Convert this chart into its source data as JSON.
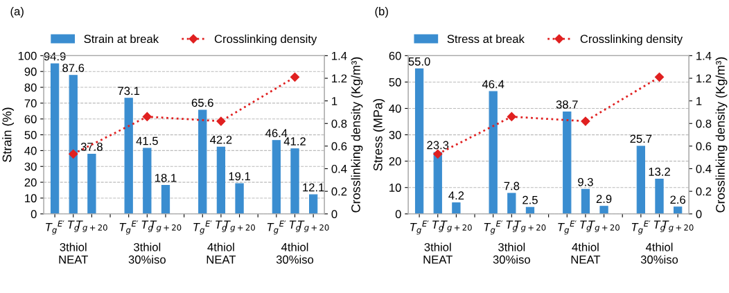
{
  "chart_data": [
    {
      "type": "bar",
      "title": "(a)",
      "ylabel": "Strain (%)",
      "y2label": "Crosslinking density (Kg/m³)",
      "categories": [
        "T$_{g}$$^{E′}$",
        "T$_{g}$",
        "T$_{g+20}$",
        null,
        "T$_{g}$$^{E′}$",
        "T$_{g}$",
        "T$_{g+20}$",
        null,
        "T$_{g}$$^{E′}$",
        "T$_{g}$",
        "T$_{g+20}$",
        null,
        "T$_{g}$$^{E′}$",
        "T$_{g}$",
        "T$_{g+20}$"
      ],
      "series": [
        {
          "name": "Strain at break",
          "color": "#3a8dd0",
          "values": [
            94.9,
            87.6,
            37.8,
            null,
            73.1,
            41.5,
            18.1,
            null,
            65.6,
            42.2,
            19.1,
            null,
            46.4,
            41.2,
            12.1
          ],
          "value_labels": [
            "94.9",
            "87.6",
            "37.8",
            null,
            "73.1",
            "41.5",
            "18.1",
            null,
            "65.6",
            "42.2",
            "19.1",
            null,
            "46.4",
            "41.2",
            "12.1"
          ]
        },
        {
          "name": "Crosslinking density",
          "type": "line",
          "axis": "y2",
          "color": "#e02020",
          "marker": "diamond",
          "line_style": "dotted",
          "values": [
            null,
            0.53,
            null,
            null,
            null,
            0.86,
            null,
            null,
            null,
            0.82,
            null,
            null,
            null,
            1.21,
            null
          ]
        }
      ],
      "ylim": [
        0,
        100
      ],
      "yticks": [
        0,
        10,
        20,
        30,
        40,
        50,
        60,
        70,
        80,
        90,
        100
      ],
      "y2lim": [
        0,
        1.4
      ],
      "y2ticks": [
        0,
        0.2,
        0.4,
        0.6,
        0.8,
        1,
        1.2,
        1.4
      ],
      "grid": "y",
      "legend": "top",
      "annotations": [
        "3thiol\nNEAT",
        "3thiol\n30%iso",
        "4thiol\nNEAT",
        "4thiol\n30%iso"
      ]
    },
    {
      "type": "bar",
      "title": "(b)",
      "ylabel": "Stress (MPa)",
      "y2label": "Crosslinking density (Kg/m³)",
      "categories": [
        "T$_{g}$$^{E′}$",
        "T$_{g}$",
        "T$_{g+20}$",
        null,
        "T$_{g}$$^{E′}$",
        "T$_{g}$",
        "T$_{g+20}$",
        null,
        "T$_{g}$$^{E′}$",
        "T$_{g}$",
        "T$_{g+20}$",
        null,
        "T$_{g}$$^{E′}$",
        "T$_{g}$",
        "T$_{g+20}$"
      ],
      "series": [
        {
          "name": "Stress at break",
          "color": "#3a8dd0",
          "values": [
            55.0,
            23.3,
            4.2,
            null,
            46.4,
            7.8,
            2.5,
            null,
            38.7,
            9.3,
            2.9,
            null,
            25.7,
            13.2,
            2.6
          ],
          "value_labels": [
            "55.0",
            "23.3",
            "4.2",
            null,
            "46.4",
            "7.8",
            "2.5",
            null,
            "38.7",
            "9.3",
            "2.9",
            null,
            "25.7",
            "13.2",
            "2.6"
          ]
        },
        {
          "name": "Crosslinking density",
          "type": "line",
          "axis": "y2",
          "color": "#e02020",
          "marker": "diamond",
          "line_style": "dotted",
          "values": [
            null,
            0.53,
            null,
            null,
            null,
            0.86,
            null,
            null,
            null,
            0.82,
            null,
            null,
            null,
            1.21,
            null
          ]
        }
      ],
      "ylim": [
        0,
        60
      ],
      "yticks": [
        0,
        10,
        20,
        30,
        40,
        50,
        60
      ],
      "y2lim": [
        0,
        1.4
      ],
      "y2ticks": [
        0,
        0.2,
        0.4,
        0.6,
        0.8,
        1,
        1.2,
        1.4
      ],
      "grid": "y",
      "legend": "top",
      "annotations": [
        "3thiol\nNEAT",
        "3thiol\n30%iso",
        "4thiol\nNEAT",
        "4thiol\n30%iso"
      ]
    }
  ]
}
